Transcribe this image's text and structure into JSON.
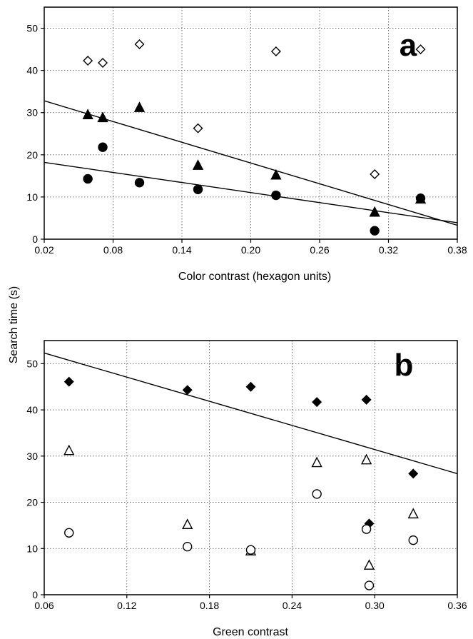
{
  "shared": {
    "ylabel": "Search time (s)"
  },
  "chart_data": [
    {
      "panel": "a",
      "type": "scatter",
      "xlabel": "Color contrast (hexagon units)",
      "xlim": [
        0.02,
        0.38
      ],
      "ylim": [
        0,
        55
      ],
      "x_ticks": [
        "0.02",
        "0.08",
        "0.14",
        "0.20",
        "0.26",
        "0.32",
        "0.38"
      ],
      "y_ticks": [
        "0",
        "10",
        "20",
        "30",
        "40",
        "50"
      ],
      "grid": true,
      "series": [
        {
          "marker": "diamond-open",
          "points": [
            [
              0.058,
              42.3
            ],
            [
              0.071,
              41.8
            ],
            [
              0.103,
              46.2
            ],
            [
              0.154,
              26.3
            ],
            [
              0.222,
              44.5
            ],
            [
              0.308,
              15.4
            ],
            [
              0.348,
              45.0
            ]
          ]
        },
        {
          "marker": "triangle-filled",
          "points": [
            [
              0.058,
              29.4
            ],
            [
              0.071,
              28.7
            ],
            [
              0.103,
              31.1
            ],
            [
              0.154,
              17.4
            ],
            [
              0.222,
              15.1
            ],
            [
              0.308,
              6.3
            ],
            [
              0.348,
              9.4
            ]
          ]
        },
        {
          "marker": "circle-filled",
          "points": [
            [
              0.058,
              14.3
            ],
            [
              0.071,
              21.8
            ],
            [
              0.103,
              13.4
            ],
            [
              0.154,
              11.8
            ],
            [
              0.222,
              10.4
            ],
            [
              0.308,
              2.0
            ],
            [
              0.348,
              9.7
            ]
          ]
        }
      ],
      "trendlines": [
        {
          "from": [
            0.02,
            32.8
          ],
          "to": [
            0.38,
            3.3
          ]
        },
        {
          "from": [
            0.02,
            18.2
          ],
          "to": [
            0.38,
            3.9
          ]
        }
      ]
    },
    {
      "panel": "b",
      "type": "scatter",
      "xlabel": "Green contrast",
      "xlim": [
        0.06,
        0.36
      ],
      "ylim": [
        0,
        55
      ],
      "x_ticks": [
        "0.06",
        "0.12",
        "0.18",
        "0.24",
        "0.30",
        "0.36"
      ],
      "y_ticks": [
        "0",
        "10",
        "20",
        "30",
        "40",
        "50"
      ],
      "grid": true,
      "series": [
        {
          "marker": "diamond-filled",
          "points": [
            [
              0.078,
              46.1
            ],
            [
              0.164,
              44.3
            ],
            [
              0.21,
              45.0
            ],
            [
              0.258,
              41.7
            ],
            [
              0.294,
              42.2
            ],
            [
              0.296,
              15.4
            ],
            [
              0.328,
              26.2
            ]
          ]
        },
        {
          "marker": "triangle-open",
          "points": [
            [
              0.078,
              31.1
            ],
            [
              0.164,
              15.1
            ],
            [
              0.21,
              9.4
            ],
            [
              0.258,
              28.5
            ],
            [
              0.294,
              29.1
            ],
            [
              0.296,
              6.3
            ],
            [
              0.328,
              17.4
            ]
          ]
        },
        {
          "marker": "circle-open",
          "points": [
            [
              0.078,
              13.4
            ],
            [
              0.164,
              10.4
            ],
            [
              0.21,
              9.7
            ],
            [
              0.258,
              21.8
            ],
            [
              0.294,
              14.2
            ],
            [
              0.296,
              2.0
            ],
            [
              0.328,
              11.8
            ]
          ]
        }
      ],
      "trendlines": [
        {
          "from": [
            0.06,
            52.3
          ],
          "to": [
            0.36,
            26.2
          ]
        }
      ]
    }
  ]
}
